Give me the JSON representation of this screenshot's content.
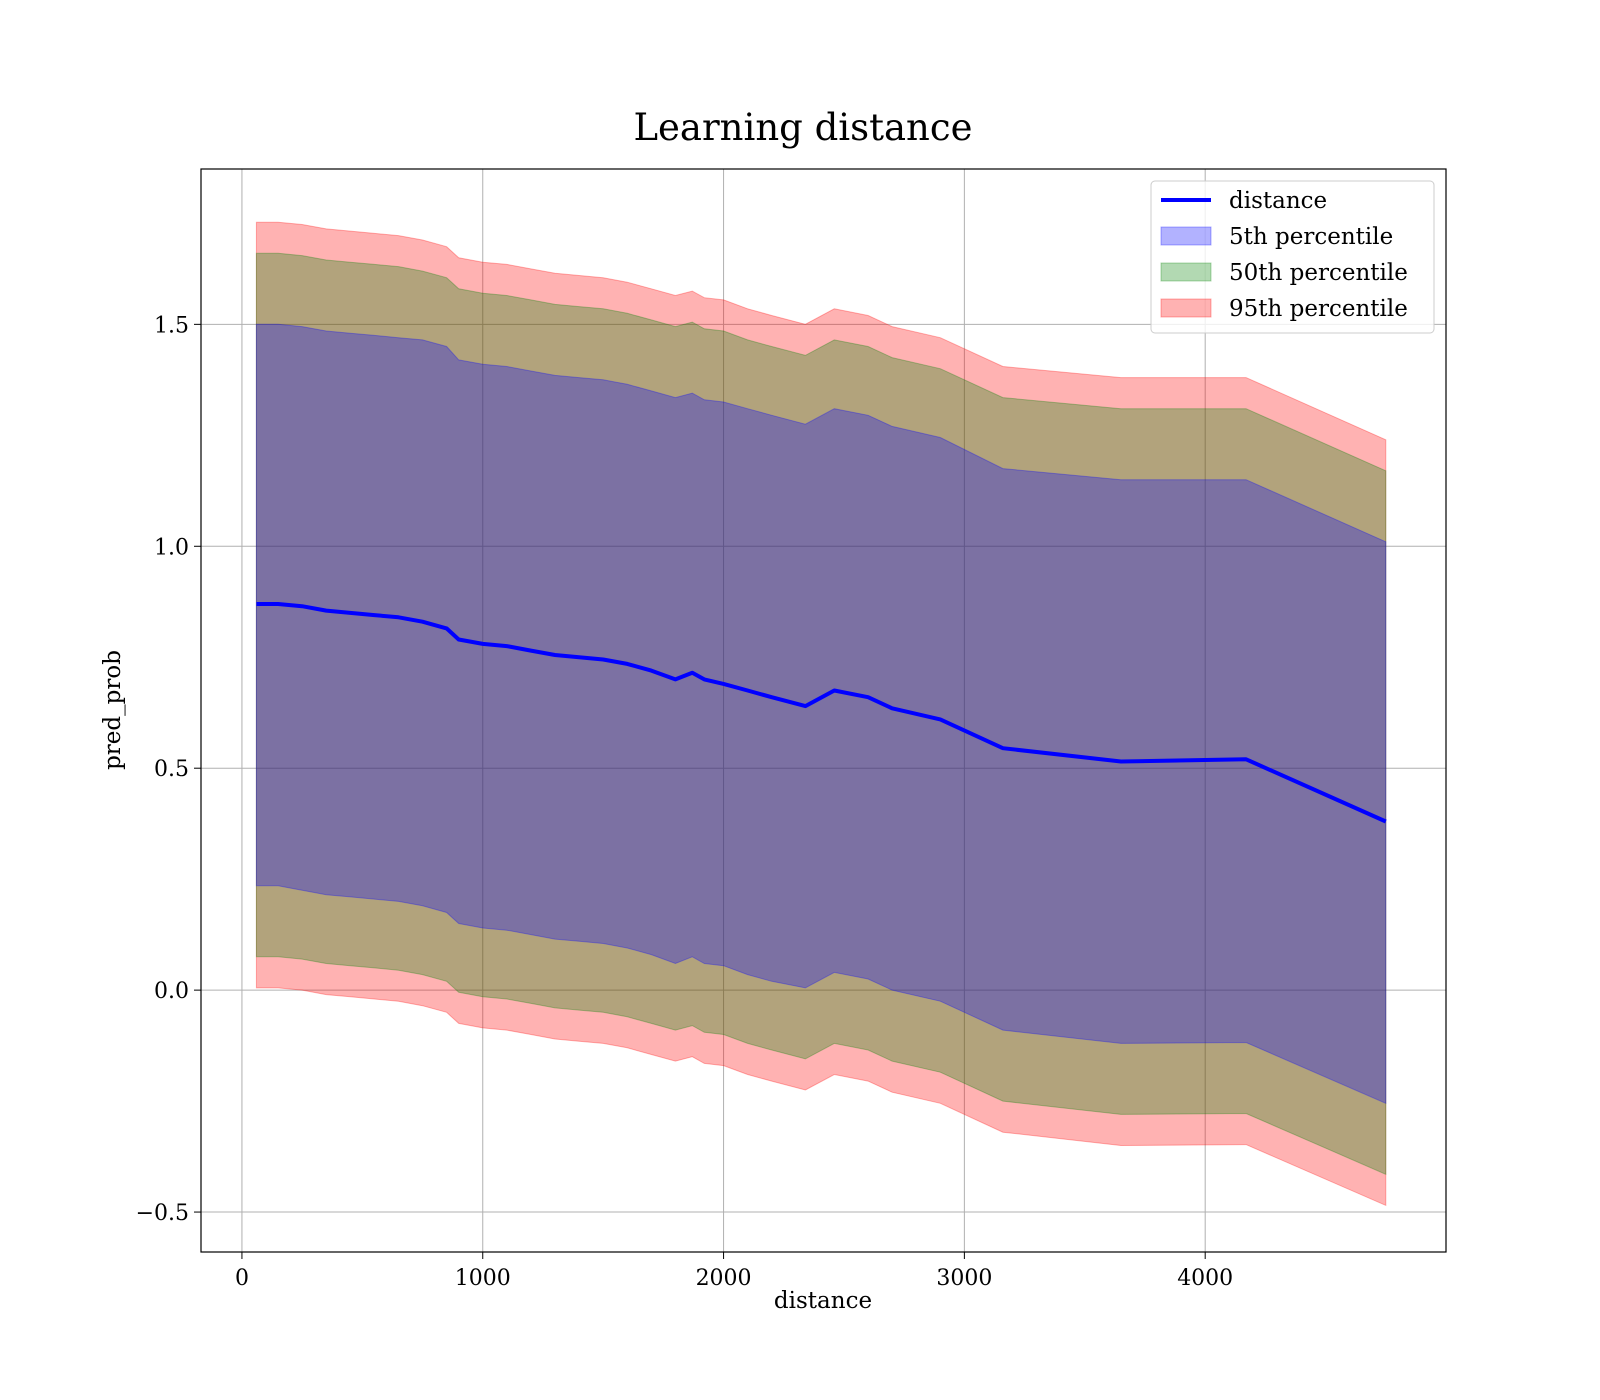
{
  "chart_data": {
    "type": "line",
    "title": "Learning distance",
    "xlabel": "distance",
    "ylabel": "pred_prob",
    "xlim": [
      -170,
      5000
    ],
    "ylim": [
      -0.59,
      1.85
    ],
    "x_ticks": [
      0,
      1000,
      2000,
      3000,
      4000
    ],
    "x_tick_labels": [
      "0",
      "1000",
      "2000",
      "3000",
      "4000"
    ],
    "y_ticks": [
      -0.5,
      0.0,
      0.5,
      1.0,
      1.5
    ],
    "y_tick_labels": [
      "−0.5",
      "0.0",
      "0.5",
      "1.0",
      "1.5"
    ],
    "grid": true,
    "legend_position": "top-right",
    "legend": [
      {
        "label": "distance",
        "kind": "line",
        "color": "#0000ff"
      },
      {
        "label": "5th percentile",
        "kind": "patch",
        "color": "#0000ff"
      },
      {
        "label": "50th percentile",
        "kind": "patch",
        "color": "#008000"
      },
      {
        "label": "95th percentile",
        "kind": "patch",
        "color": "#ff0000"
      }
    ],
    "x": [
      60,
      150,
      250,
      350,
      450,
      550,
      650,
      750,
      850,
      900,
      1000,
      1100,
      1200,
      1300,
      1400,
      1500,
      1600,
      1700,
      1800,
      1870,
      1920,
      2000,
      2100,
      2200,
      2340,
      2460,
      2600,
      2700,
      2900,
      3160,
      3650,
      4170,
      4750
    ],
    "series": [
      {
        "name": "distance",
        "color": "#0000ff",
        "values": [
          0.87,
          0.87,
          0.865,
          0.855,
          0.85,
          0.845,
          0.84,
          0.83,
          0.815,
          0.79,
          0.78,
          0.775,
          0.765,
          0.755,
          0.75,
          0.745,
          0.735,
          0.72,
          0.7,
          0.715,
          0.7,
          0.69,
          0.675,
          0.66,
          0.64,
          0.675,
          0.66,
          0.635,
          0.61,
          0.545,
          0.515,
          0.52,
          0.38
        ]
      }
    ],
    "bands": [
      {
        "name": "5th percentile",
        "color": "#0000ff",
        "lower": [
          0.235,
          0.235,
          0.225,
          0.215,
          0.21,
          0.205,
          0.2,
          0.19,
          0.175,
          0.15,
          0.14,
          0.135,
          0.125,
          0.115,
          0.11,
          0.105,
          0.095,
          0.08,
          0.06,
          0.075,
          0.06,
          0.055,
          0.035,
          0.02,
          0.005,
          0.04,
          0.025,
          0.0,
          -0.025,
          -0.09,
          -0.12,
          -0.118,
          -0.255
        ],
        "upper": [
          1.5,
          1.5,
          1.495,
          1.485,
          1.48,
          1.475,
          1.47,
          1.465,
          1.45,
          1.42,
          1.41,
          1.405,
          1.395,
          1.385,
          1.38,
          1.375,
          1.365,
          1.35,
          1.335,
          1.345,
          1.33,
          1.325,
          1.31,
          1.295,
          1.275,
          1.31,
          1.295,
          1.27,
          1.245,
          1.175,
          1.15,
          1.15,
          1.01
        ]
      },
      {
        "name": "50th percentile",
        "color": "#008000",
        "lower": [
          0.075,
          0.075,
          0.07,
          0.06,
          0.055,
          0.05,
          0.045,
          0.035,
          0.02,
          -0.005,
          -0.015,
          -0.02,
          -0.03,
          -0.04,
          -0.045,
          -0.05,
          -0.06,
          -0.075,
          -0.09,
          -0.08,
          -0.095,
          -0.1,
          -0.12,
          -0.135,
          -0.155,
          -0.12,
          -0.135,
          -0.16,
          -0.185,
          -0.25,
          -0.28,
          -0.278,
          -0.415
        ],
        "upper": [
          1.66,
          1.66,
          1.655,
          1.645,
          1.64,
          1.635,
          1.63,
          1.62,
          1.605,
          1.58,
          1.57,
          1.565,
          1.555,
          1.545,
          1.54,
          1.535,
          1.525,
          1.51,
          1.495,
          1.505,
          1.49,
          1.485,
          1.465,
          1.45,
          1.43,
          1.465,
          1.45,
          1.425,
          1.4,
          1.335,
          1.31,
          1.31,
          1.17
        ]
      },
      {
        "name": "95th percentile",
        "color": "#ff0000",
        "lower": [
          0.005,
          0.005,
          0.0,
          -0.01,
          -0.015,
          -0.02,
          -0.025,
          -0.035,
          -0.05,
          -0.075,
          -0.085,
          -0.09,
          -0.1,
          -0.11,
          -0.115,
          -0.12,
          -0.13,
          -0.145,
          -0.16,
          -0.15,
          -0.165,
          -0.17,
          -0.19,
          -0.205,
          -0.225,
          -0.19,
          -0.205,
          -0.23,
          -0.255,
          -0.32,
          -0.35,
          -0.348,
          -0.485
        ],
        "upper": [
          1.73,
          1.73,
          1.725,
          1.715,
          1.71,
          1.705,
          1.7,
          1.69,
          1.675,
          1.65,
          1.64,
          1.635,
          1.625,
          1.615,
          1.61,
          1.605,
          1.595,
          1.58,
          1.565,
          1.575,
          1.56,
          1.555,
          1.535,
          1.52,
          1.5,
          1.535,
          1.52,
          1.495,
          1.47,
          1.405,
          1.38,
          1.38,
          1.24
        ]
      }
    ]
  }
}
